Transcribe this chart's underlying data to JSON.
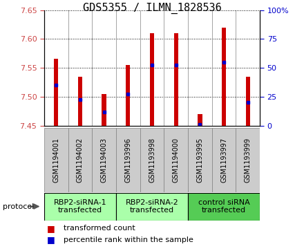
{
  "title": "GDS5355 / ILMN_1828536",
  "samples": [
    "GSM1194001",
    "GSM1194002",
    "GSM1194003",
    "GSM1193996",
    "GSM1193998",
    "GSM1194000",
    "GSM1193995",
    "GSM1193997",
    "GSM1193999"
  ],
  "bar_bottoms": [
    7.45,
    7.45,
    7.45,
    7.45,
    7.45,
    7.45,
    7.45,
    7.45,
    7.45
  ],
  "bar_tops": [
    7.565,
    7.535,
    7.505,
    7.555,
    7.61,
    7.61,
    7.47,
    7.62,
    7.535
  ],
  "percentile_values": [
    7.52,
    7.495,
    7.473,
    7.505,
    7.555,
    7.555,
    7.452,
    7.56,
    7.49
  ],
  "ylim_left": [
    7.45,
    7.65
  ],
  "ylim_right": [
    0,
    100
  ],
  "yticks_left": [
    7.45,
    7.5,
    7.55,
    7.6,
    7.65
  ],
  "yticks_right": [
    0,
    25,
    50,
    75,
    100
  ],
  "group_labels": [
    "RBP2-siRNA-1\ntransfected",
    "RBP2-siRNA-2\ntransfected",
    "control siRNA\ntransfected"
  ],
  "group_starts": [
    0,
    3,
    6
  ],
  "group_ends": [
    2,
    5,
    8
  ],
  "group_colors": [
    "#aaffaa",
    "#aaffaa",
    "#55cc55"
  ],
  "bar_color": "#cc0000",
  "percentile_color": "#0000cc",
  "bar_width": 0.18,
  "cell_bg_color": "#cccccc",
  "plot_bg": "#ffffff",
  "left_tick_color": "#cc4444",
  "right_tick_color": "#0000cc",
  "tick_fontsize": 8,
  "sample_fontsize": 7,
  "group_fontsize": 8,
  "legend_fontsize": 8,
  "title_fontsize": 11
}
